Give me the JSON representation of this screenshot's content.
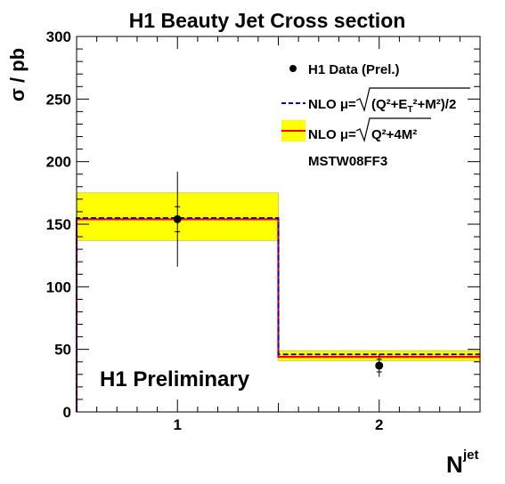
{
  "chart_data": {
    "type": "step",
    "title": "H1 Beauty Jet Cross section",
    "ylabel": "σ  / pb",
    "xlabel": {
      "main": "N",
      "superscript": "jet"
    },
    "xlim": [
      0.5,
      2.5
    ],
    "ylim": [
      0,
      300
    ],
    "xticks": [
      1,
      2
    ],
    "xtick_labels": [
      "1",
      "2"
    ],
    "yticks": [
      0,
      50,
      100,
      150,
      200,
      250,
      300
    ],
    "ytick_labels": [
      "0",
      "50",
      "100",
      "150",
      "200",
      "250",
      "300"
    ],
    "bins": [
      {
        "low": 0.5,
        "high": 1.5
      },
      {
        "low": 1.5,
        "high": 2.5
      }
    ],
    "series": [
      {
        "name": "H1 Data (Prel.)",
        "kind": "points",
        "color": "#000000",
        "x": [
          1,
          2
        ],
        "y": [
          154,
          37
        ],
        "err_stat": [
          10,
          5
        ],
        "err_tot": [
          38,
          9
        ]
      },
      {
        "name": "NLO μ=√((Q²+E_T²+M²)/2)",
        "kind": "step-line",
        "style": "dashed",
        "color": "#0000cc",
        "values": [
          155,
          46
        ]
      },
      {
        "name": "NLO μ=√(Q²+4M²)",
        "kind": "step-line-band",
        "color": "#ff0000",
        "band_color": "#ffff00",
        "values": [
          154,
          44
        ],
        "band_low": [
          137,
          41
        ],
        "band_high": [
          175,
          49
        ]
      }
    ],
    "legend": {
      "placement": "top-right",
      "entries": [
        {
          "marker": "point",
          "text": "H1 Data (Prel.)"
        },
        {
          "marker": "dashed-line",
          "prefix": "NLO μ=",
          "radicand": "(Q²+E",
          "sub": "T",
          "radicand_rest": "²+M²)/2"
        },
        {
          "marker": "band-line",
          "prefix": "NLO μ=",
          "radicand": "Q²+4M²"
        }
      ],
      "note": "MSTW08FF3"
    },
    "annotation": "H1 Preliminary",
    "grid": false
  }
}
